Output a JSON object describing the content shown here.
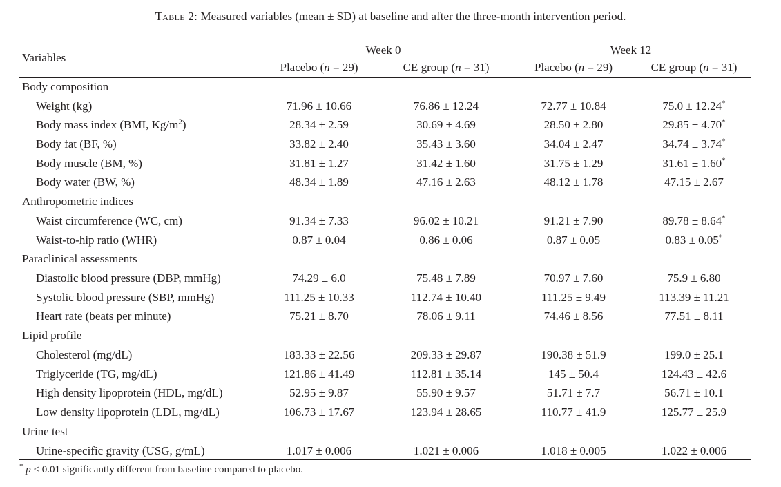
{
  "caption": {
    "label": "Table 2:",
    "text": "Measured variables (mean ± SD) at baseline and after the three-month intervention period."
  },
  "header": {
    "variables": "Variables",
    "week0": "Week 0",
    "week12": "Week 12",
    "groups": [
      "Placebo (n = 29)",
      "CE group (n = 31)",
      "Placebo (n = 29)",
      "CE group (n = 31)"
    ]
  },
  "sections": [
    {
      "title": "Body composition",
      "rows": [
        {
          "label": "Weight (kg)",
          "values": [
            "71.96 ± 10.66",
            "76.86 ± 12.24",
            "72.77 ± 10.84",
            "75.0 ± 12.24*"
          ]
        },
        {
          "label": "Body mass index (BMI, Kg/m2)",
          "values": [
            "28.34 ± 2.59",
            "30.69 ± 4.69",
            "28.50 ± 2.80",
            "29.85 ± 4.70*"
          ]
        },
        {
          "label": "Body fat (BF, %)",
          "values": [
            "33.82 ± 2.40",
            "35.43 ± 3.60",
            "34.04 ± 2.47",
            "34.74 ± 3.74*"
          ]
        },
        {
          "label": "Body muscle (BM, %)",
          "values": [
            "31.81 ± 1.27",
            "31.42 ± 1.60",
            "31.75 ± 1.29",
            "31.61 ± 1.60*"
          ]
        },
        {
          "label": "Body water (BW, %)",
          "values": [
            "48.34 ± 1.89",
            "47.16 ± 2.63",
            "48.12 ± 1.78",
            "47.15 ± 2.67"
          ]
        }
      ]
    },
    {
      "title": "Anthropometric indices",
      "rows": [
        {
          "label": "Waist circumference (WC, cm)",
          "values": [
            "91.34 ± 7.33",
            "96.02 ± 10.21",
            "91.21 ± 7.90",
            "89.78 ± 8.64*"
          ]
        },
        {
          "label": "Waist-to-hip ratio (WHR)",
          "values": [
            "0.87 ± 0.04",
            "0.86 ± 0.06",
            "0.87 ± 0.05",
            "0.83 ± 0.05*"
          ]
        }
      ]
    },
    {
      "title": "Paraclinical assessments",
      "rows": [
        {
          "label": "Diastolic blood pressure (DBP, mmHg)",
          "values": [
            "74.29 ± 6.0",
            "75.48 ± 7.89",
            "70.97 ± 7.60",
            "75.9 ± 6.80"
          ]
        },
        {
          "label": "Systolic blood pressure (SBP, mmHg)",
          "values": [
            "111.25 ± 10.33",
            "112.74 ± 10.40",
            "111.25 ± 9.49",
            "113.39 ± 11.21"
          ]
        },
        {
          "label": "Heart rate (beats per minute)",
          "values": [
            "75.21 ± 8.70",
            "78.06 ± 9.11",
            "74.46 ± 8.56",
            "77.51 ± 8.11"
          ]
        }
      ]
    },
    {
      "title": "Lipid profile",
      "rows": [
        {
          "label": "Cholesterol (mg/dL)",
          "values": [
            "183.33 ± 22.56",
            "209.33 ± 29.87",
            "190.38 ± 51.9",
            "199.0 ± 25.1"
          ]
        },
        {
          "label": "Triglyceride (TG, mg/dL)",
          "values": [
            "121.86 ± 41.49",
            "112.81 ± 35.14",
            "145 ± 50.4",
            "124.43 ± 42.6"
          ]
        },
        {
          "label": "High density lipoprotein (HDL, mg/dL)",
          "values": [
            "52.95 ± 9.87",
            "55.90 ± 9.57",
            "51.71 ± 7.7",
            "56.71 ± 10.1"
          ]
        },
        {
          "label": "Low density lipoprotein (LDL, mg/dL)",
          "values": [
            "106.73 ± 17.67",
            "123.94 ± 28.65",
            "110.77 ± 41.9",
            "125.77 ± 25.9"
          ]
        }
      ]
    },
    {
      "title": "Urine test",
      "rows": [
        {
          "label": "Urine-specific gravity (USG, g/mL)",
          "values": [
            "1.017 ± 0.006",
            "1.021 ± 0.006",
            "1.018 ± 0.005",
            "1.022 ± 0.006"
          ]
        }
      ]
    }
  ],
  "footnote": "* p < 0.01 significantly different from baseline compared to placebo."
}
